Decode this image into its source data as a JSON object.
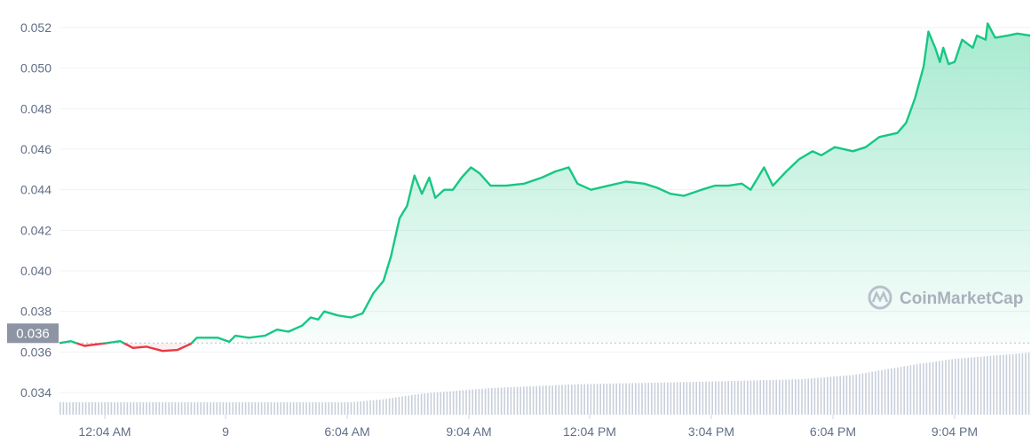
{
  "chart_data": {
    "type": "area",
    "title": "",
    "xlabel": "",
    "ylabel": "",
    "ylim": [
      0.034,
      0.052
    ],
    "yticks": [
      "0.034",
      "0.036",
      "0.038",
      "0.040",
      "0.042",
      "0.044",
      "0.046",
      "0.048",
      "0.050",
      "0.052"
    ],
    "xticks": [
      "12:04 AM",
      "9",
      "6:04 AM",
      "9:04 AM",
      "12:04 PM",
      "3:04 PM",
      "6:04 PM",
      "9:04 PM"
    ],
    "grid": true,
    "reference_price": 0.03644,
    "reference_label": "0.036",
    "colors": {
      "up": "#16c784",
      "down": "#ea3943",
      "volume": "#c9cfdb",
      "badge": "#8d94a3"
    },
    "watermark": "CoinMarketCap",
    "series": [
      {
        "points": [
          [
            "22:57",
            0.03644
          ],
          [
            "23:14",
            0.03653
          ],
          [
            "23:34",
            0.0363
          ],
          [
            "00:07",
            0.03644
          ],
          [
            "00:27",
            0.03653
          ],
          [
            "00:46",
            0.0362
          ],
          [
            "01:06",
            0.03626
          ],
          [
            "01:30",
            0.03605
          ],
          [
            "01:52",
            0.0361
          ],
          [
            "02:12",
            0.0364
          ],
          [
            "02:21",
            0.0367
          ],
          [
            "02:52",
            0.0367
          ],
          [
            "03:09",
            0.0365
          ],
          [
            "03:18",
            0.0368
          ],
          [
            "03:38",
            0.0367
          ],
          [
            "04:02",
            0.0368
          ],
          [
            "04:20",
            0.0371
          ],
          [
            "04:37",
            0.037
          ],
          [
            "04:57",
            0.0373
          ],
          [
            "05:10",
            0.0377
          ],
          [
            "05:21",
            0.0376
          ],
          [
            "05:30",
            0.038
          ],
          [
            "05:50",
            0.0378
          ],
          [
            "06:10",
            0.0377
          ],
          [
            "06:27",
            0.0379
          ],
          [
            "06:43",
            0.0389
          ],
          [
            "06:58",
            0.0395
          ],
          [
            "07:09",
            0.0407
          ],
          [
            "07:22",
            0.0426
          ],
          [
            "07:33",
            0.0432
          ],
          [
            "07:44",
            0.0447
          ],
          [
            "07:55",
            0.0438
          ],
          [
            "08:06",
            0.0446
          ],
          [
            "08:15",
            0.0436
          ],
          [
            "08:28",
            0.044
          ],
          [
            "08:41",
            0.044
          ],
          [
            "08:54",
            0.0446
          ],
          [
            "09:08",
            0.0451
          ],
          [
            "09:21",
            0.0448
          ],
          [
            "09:37",
            0.0442
          ],
          [
            "10:00",
            0.0442
          ],
          [
            "10:27",
            0.0443
          ],
          [
            "10:53",
            0.0446
          ],
          [
            "11:13",
            0.0449
          ],
          [
            "11:33",
            0.0451
          ],
          [
            "11:46",
            0.0443
          ],
          [
            "12:06",
            0.044
          ],
          [
            "12:32",
            0.0442
          ],
          [
            "12:58",
            0.0444
          ],
          [
            "13:25",
            0.0443
          ],
          [
            "13:44",
            0.0441
          ],
          [
            "14:04",
            0.0438
          ],
          [
            "14:24",
            0.0437
          ],
          [
            "14:50",
            0.044
          ],
          [
            "15:10",
            0.0442
          ],
          [
            "15:30",
            0.0442
          ],
          [
            "15:50",
            0.0443
          ],
          [
            "16:03",
            0.044
          ],
          [
            "16:23",
            0.0451
          ],
          [
            "16:36",
            0.0442
          ],
          [
            "16:56",
            0.0449
          ],
          [
            "17:15",
            0.0455
          ],
          [
            "17:35",
            0.0459
          ],
          [
            "17:48",
            0.0457
          ],
          [
            "18:08",
            0.0461
          ],
          [
            "18:35",
            0.0459
          ],
          [
            "18:54",
            0.0461
          ],
          [
            "19:14",
            0.0466
          ],
          [
            "19:41",
            0.0468
          ],
          [
            "19:54",
            0.0473
          ],
          [
            "20:07",
            0.0485
          ],
          [
            "20:20",
            0.0501
          ],
          [
            "20:27",
            0.0518
          ],
          [
            "20:37",
            0.051
          ],
          [
            "20:44",
            0.0503
          ],
          [
            "20:49",
            0.051
          ],
          [
            "20:57",
            0.0502
          ],
          [
            "21:06",
            0.0503
          ],
          [
            "21:17",
            0.0514
          ],
          [
            "21:33",
            0.051
          ],
          [
            "21:39",
            0.0516
          ],
          [
            "21:52",
            0.0514
          ],
          [
            "21:55",
            0.0522
          ],
          [
            "22:06",
            0.0515
          ],
          [
            "22:25",
            0.0516
          ],
          [
            "22:39",
            0.0517
          ],
          [
            "22:58",
            0.0516
          ]
        ]
      }
    ],
    "volume_relative": [
      [
        "22:57",
        0.2
      ],
      [
        "06:10",
        0.2
      ],
      [
        "06:58",
        0.25
      ],
      [
        "07:55",
        0.34
      ],
      [
        "09:37",
        0.43
      ],
      [
        "11:46",
        0.49
      ],
      [
        "14:50",
        0.53
      ],
      [
        "17:15",
        0.57
      ],
      [
        "18:35",
        0.64
      ],
      [
        "20:07",
        0.81
      ],
      [
        "21:06",
        0.9
      ],
      [
        "22:58",
        1.0
      ]
    ]
  }
}
